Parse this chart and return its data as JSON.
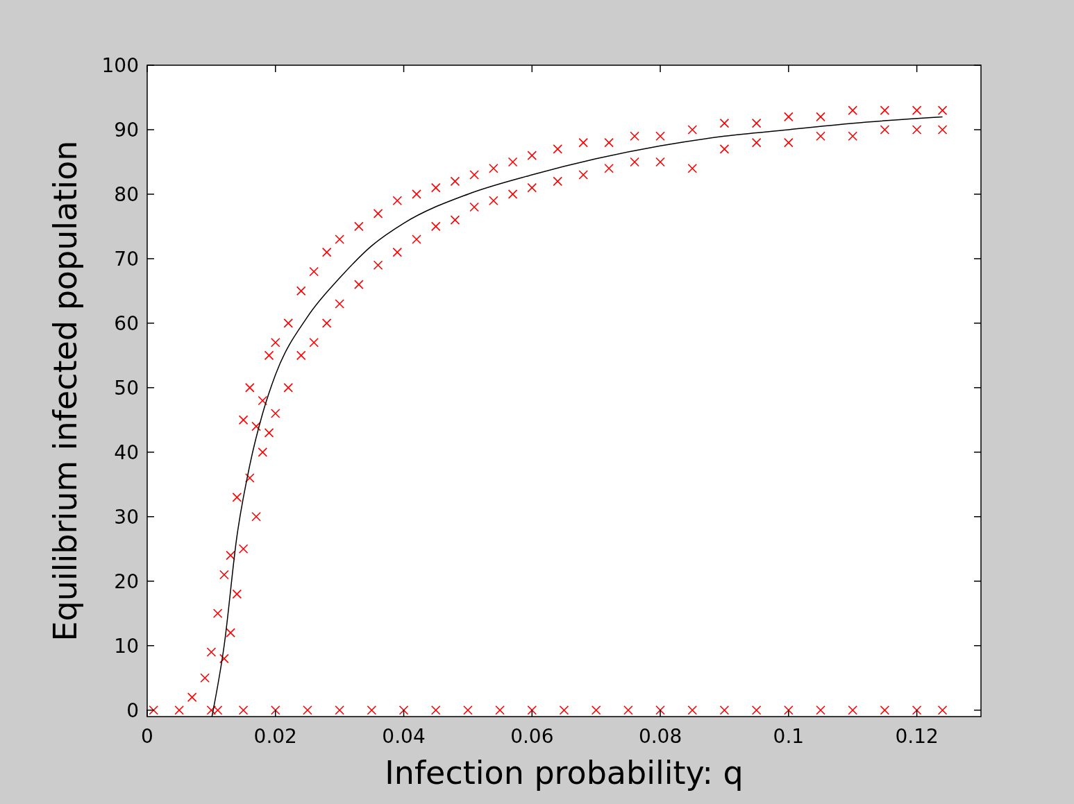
{
  "chart_data": {
    "type": "scatter",
    "xlabel": "Infection probability: q",
    "ylabel": "Equilibrium infected population",
    "xlim": [
      0,
      0.13
    ],
    "ylim": [
      -1,
      100
    ],
    "xticks": [
      0,
      0.02,
      0.04,
      0.06,
      0.08,
      0.1,
      0.12
    ],
    "yticks": [
      0,
      10,
      20,
      30,
      40,
      50,
      60,
      70,
      80,
      90,
      100
    ],
    "grid": false,
    "marker": "cross",
    "series": [
      {
        "type": "scatter",
        "color": "#ff0000",
        "x": [
          0.007,
          0.009,
          0.01,
          0.011,
          0.011,
          0.012,
          0.012,
          0.013,
          0.013,
          0.014,
          0.014,
          0.015,
          0.015,
          0.016,
          0.016,
          0.017,
          0.017,
          0.018,
          0.018,
          0.019,
          0.019,
          0.02,
          0.02,
          0.022,
          0.022,
          0.024,
          0.024,
          0.026,
          0.026,
          0.028,
          0.028,
          0.03,
          0.03,
          0.033,
          0.033,
          0.036,
          0.036,
          0.039,
          0.039,
          0.042,
          0.042,
          0.045,
          0.045,
          0.048,
          0.048,
          0.051,
          0.051,
          0.054,
          0.054,
          0.057,
          0.057,
          0.06,
          0.06,
          0.064,
          0.064,
          0.068,
          0.068,
          0.072,
          0.072,
          0.076,
          0.076,
          0.08,
          0.08,
          0.085,
          0.085,
          0.09,
          0.09,
          0.095,
          0.095,
          0.1,
          0.1,
          0.105,
          0.105,
          0.11,
          0.11,
          0.115,
          0.115,
          0.12,
          0.12,
          0.124,
          0.124,
          0.001,
          0.005,
          0.01,
          0.015,
          0.02,
          0.025,
          0.03,
          0.035,
          0.04,
          0.045,
          0.05,
          0.055,
          0.06,
          0.065,
          0.07,
          0.075,
          0.08,
          0.085,
          0.09,
          0.095,
          0.1,
          0.105,
          0.11,
          0.115,
          0.12,
          0.124
        ],
        "values": [
          2,
          5,
          9,
          0,
          15,
          21,
          8,
          24,
          12,
          33,
          18,
          45,
          25,
          50,
          36,
          44,
          30,
          48,
          40,
          55,
          43,
          57,
          46,
          60,
          50,
          65,
          55,
          68,
          57,
          71,
          60,
          73,
          63,
          75,
          66,
          77,
          69,
          79,
          71,
          80,
          73,
          81,
          75,
          82,
          76,
          83,
          78,
          84,
          79,
          85,
          80,
          86,
          81,
          87,
          82,
          88,
          83,
          88,
          84,
          89,
          85,
          89,
          85,
          90,
          84,
          91,
          87,
          91,
          88,
          92,
          88,
          92,
          89,
          93,
          89,
          93,
          90,
          93,
          90,
          93,
          90,
          0,
          0,
          0,
          0,
          0,
          0,
          0,
          0,
          0,
          0,
          0,
          0,
          0,
          0,
          0,
          0,
          0,
          0,
          0,
          0,
          0,
          0,
          0,
          0,
          0,
          0
        ]
      },
      {
        "type": "line",
        "color": "#000000",
        "marker": "none",
        "x": [
          0.0101,
          0.012,
          0.014,
          0.016,
          0.018,
          0.02,
          0.025,
          0.03,
          0.035,
          0.04,
          0.05,
          0.06,
          0.07,
          0.08,
          0.09,
          0.1,
          0.11,
          0.124
        ],
        "values": [
          -1,
          10,
          27,
          38,
          46,
          52,
          61,
          67,
          72,
          75.5,
          80,
          83,
          85.5,
          87.5,
          89,
          90,
          91,
          92
        ]
      }
    ]
  }
}
